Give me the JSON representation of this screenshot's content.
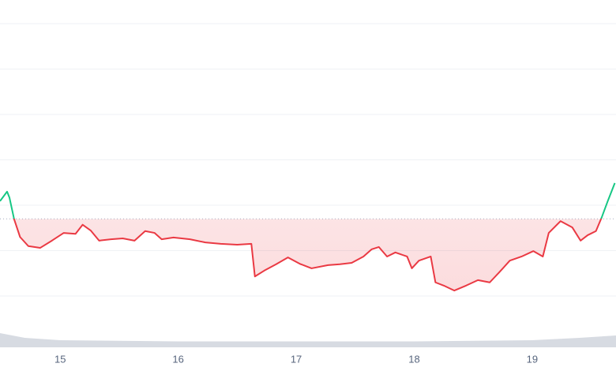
{
  "chart_data": {
    "type": "line",
    "x": [
      14.49,
      14.55,
      14.57,
      14.61,
      14.66,
      14.73,
      14.83,
      14.93,
      15.03,
      15.13,
      15.19,
      15.26,
      15.33,
      15.43,
      15.53,
      15.63,
      15.72,
      15.8,
      15.86,
      15.96,
      16.1,
      16.23,
      16.36,
      16.5,
      16.62,
      16.65,
      16.73,
      16.83,
      16.93,
      17.03,
      17.13,
      17.27,
      17.37,
      17.47,
      17.57,
      17.64,
      17.7,
      17.77,
      17.84,
      17.94,
      17.98,
      18.04,
      18.14,
      18.18,
      18.25,
      18.34,
      18.44,
      18.54,
      18.64,
      18.72,
      18.81,
      18.91,
      19.01,
      19.09,
      19.14,
      19.24,
      19.34,
      19.41,
      19.47,
      19.54,
      19.59,
      19.64,
      19.7
    ],
    "values": [
      20.9,
      23.0,
      21.7,
      16.9,
      13.0,
      11.0,
      10.6,
      12.2,
      13.9,
      13.7,
      15.7,
      14.4,
      12.2,
      12.5,
      12.7,
      12.2,
      14.3,
      13.9,
      12.5,
      12.9,
      12.5,
      11.8,
      11.5,
      11.3,
      11.5,
      4.3,
      5.6,
      7.0,
      8.5,
      7.1,
      6.1,
      6.8,
      7.0,
      7.3,
      8.7,
      10.3,
      10.8,
      8.7,
      9.6,
      8.7,
      6.1,
      7.8,
      8.7,
      3.0,
      2.3,
      1.2,
      2.3,
      3.5,
      3.0,
      5.2,
      7.8,
      8.7,
      9.9,
      8.7,
      13.9,
      16.5,
      15.1,
      12.2,
      13.4,
      14.3,
      17.4,
      20.9,
      24.9
    ],
    "reference": 17.0,
    "up_color": "#16c784",
    "down_color": "#ea3943",
    "xlim": [
      14.49,
      19.71
    ],
    "xticks": [
      15,
      16,
      17,
      18,
      19
    ],
    "ylim": [
      0,
      60
    ],
    "ygrid": [
      0,
      10,
      20,
      30,
      40,
      50,
      60
    ],
    "volume": {
      "x": [
        14.49,
        14.7,
        15,
        16,
        17,
        18,
        19,
        19.4,
        19.71
      ],
      "values": [
        6,
        4,
        3,
        2.5,
        2.5,
        2.5,
        3,
        4,
        5
      ],
      "lim": [
        0,
        10
      ],
      "color": "#d7dbe2"
    }
  }
}
